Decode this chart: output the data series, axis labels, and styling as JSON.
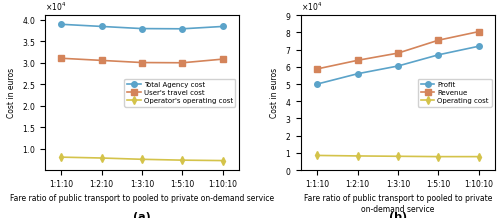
{
  "x_labels": [
    "1:1:10",
    "1:2:10",
    "1:3:10",
    "1:5:10",
    "1:10:10"
  ],
  "x_positions": [
    0,
    1,
    2,
    3,
    4
  ],
  "a_total_agency": [
    38900,
    38400,
    37900,
    37850,
    38400
  ],
  "a_user_travel": [
    31000,
    30500,
    30000,
    29950,
    30800
  ],
  "a_operator_op": [
    8000,
    7800,
    7500,
    7300,
    7200
  ],
  "a_ylim": [
    5000,
    41000
  ],
  "a_yticks": [
    10000,
    15000,
    20000,
    25000,
    30000,
    35000,
    40000
  ],
  "a_ylabel": "Cost in euros",
  "a_xlabel": "Fare ratio of public transport to pooled to private on-demand service",
  "a_subtitle": "(a)",
  "b_profit": [
    50000,
    56000,
    60500,
    67000,
    72000
  ],
  "b_revenue": [
    58800,
    63800,
    68000,
    75500,
    80500
  ],
  "b_op_cost": [
    8500,
    8200,
    8000,
    7800,
    7800
  ],
  "b_ylim": [
    0,
    90000
  ],
  "b_yticks": [
    0,
    10000,
    20000,
    30000,
    40000,
    50000,
    60000,
    70000,
    80000,
    90000
  ],
  "b_ylabel": "Cost in euros",
  "b_xlabel": "Fare ratio of public transport to pooled to private on-demand service",
  "b_subtitle": "(b)",
  "color_blue": "#5BA3C9",
  "color_orange": "#D4845A",
  "color_yellow": "#D4C34A",
  "legend_a": [
    "Total Agency cost",
    "User's travel cost",
    "Operator's operating cost"
  ],
  "legend_b": [
    "Profit",
    "Revenue",
    "Operating cost"
  ],
  "marker_circle": "o",
  "marker_square": "s",
  "marker_diamond": "d",
  "line_width": 1.2,
  "marker_size": 4,
  "tick_label_fontsize": 5.5,
  "axis_label_fontsize": 5.5,
  "legend_fontsize": 5.0,
  "subtitle_fontsize": 8
}
